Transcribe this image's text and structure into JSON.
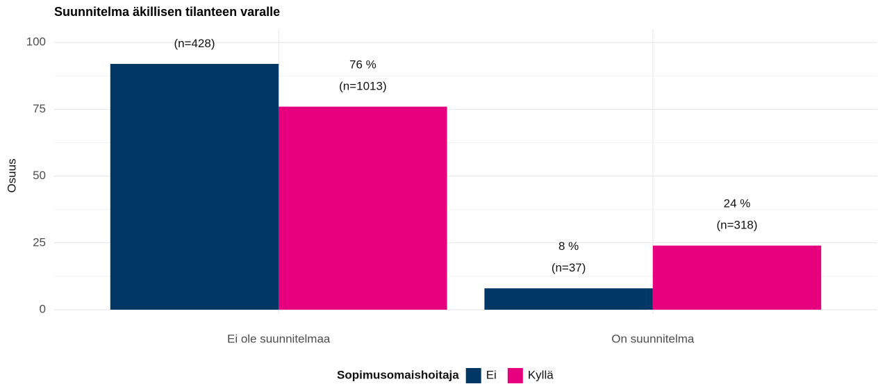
{
  "chart_data": {
    "type": "bar",
    "title": "Suunnitelma äkillisen tilanteen varalle",
    "ylabel": "Osuus",
    "categories": [
      "Ei ole suunnitelmaa",
      "On suunnitelma"
    ],
    "series": [
      {
        "name": "Ei",
        "color": "#003764",
        "values": [
          92,
          8
        ],
        "value_labels": [
          "(n=428)",
          "8 %\n(n=37)"
        ]
      },
      {
        "name": "Kyllä",
        "color": "#e6007e",
        "values": [
          76,
          24
        ],
        "value_labels": [
          "76 %\n(n=1013)",
          "24 %\n(n=318)"
        ]
      }
    ],
    "legend_title": "Sopimusomaishoitaja",
    "legend": "bottom",
    "ylim": [
      0,
      105
    ],
    "yticks": [
      0,
      25,
      50,
      75,
      100
    ],
    "grid": true
  }
}
